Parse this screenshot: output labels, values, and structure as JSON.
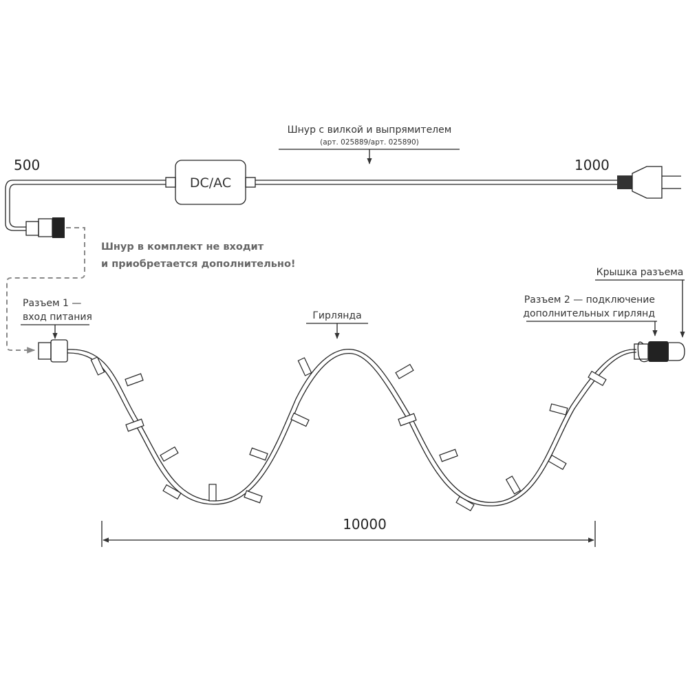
{
  "cord": {
    "title": "Шнур с вилкой и выпрямителем",
    "article": "(арт. 025889/арт. 025890)",
    "box_label": "DC/AC",
    "length_left": 500,
    "length_right": 1000
  },
  "note": {
    "line1": "Шнур в комплект не входит",
    "line2": "и приобретается дополнительно!"
  },
  "connector1": {
    "line1": "Разъем 1 —",
    "line2": "вход питания"
  },
  "garland": {
    "label": "Гирлянда",
    "length": 10000
  },
  "cap": {
    "label": "Крышка разъема"
  },
  "connector2": {
    "line1": "Разъем 2 — подключение",
    "line2": "дополнительных гирлянд"
  }
}
